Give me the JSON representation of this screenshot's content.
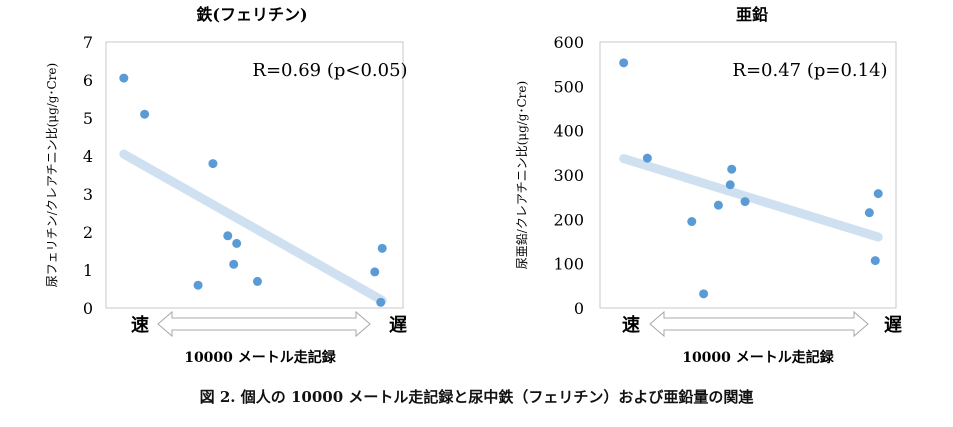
{
  "figure_caption": "図 2. 個人の 10000 メートル走記録と尿中鉄（フェリチン）および亜鉛量の関連",
  "chart_data": [
    {
      "type": "scatter",
      "title": "鉄(フェリチン)",
      "ylabel": "尿フェリチン/クレアチニン比(μg/g･Cre)",
      "xlabel": "10000 メートル走記録",
      "x_left_label": "速",
      "x_right_label": "遅",
      "ylim": [
        0,
        7
      ],
      "yticks": [
        0,
        1,
        2,
        3,
        4,
        5,
        6,
        7
      ],
      "xlim": [
        0,
        10
      ],
      "annotation": "R=0.69 (p<0.05)",
      "points": [
        {
          "x": 0.6,
          "y": 6.05
        },
        {
          "x": 1.3,
          "y": 5.1
        },
        {
          "x": 3.1,
          "y": 0.6
        },
        {
          "x": 3.6,
          "y": 3.8
        },
        {
          "x": 4.1,
          "y": 1.9
        },
        {
          "x": 4.4,
          "y": 1.7
        },
        {
          "x": 4.3,
          "y": 1.15
        },
        {
          "x": 5.1,
          "y": 0.7
        },
        {
          "x": 9.05,
          "y": 0.95
        },
        {
          "x": 9.3,
          "y": 1.57
        },
        {
          "x": 9.25,
          "y": 0.15
        }
      ],
      "trendline": {
        "x": [
          0.6,
          9.3
        ],
        "y": [
          4.05,
          0.2
        ]
      }
    },
    {
      "type": "scatter",
      "title": "亜鉛",
      "ylabel": "尿亜鉛/クレアチニン比(μg/g･Cre)",
      "xlabel": "10000 メートル走記録",
      "x_left_label": "速",
      "x_right_label": "遅",
      "ylim": [
        0,
        600
      ],
      "yticks": [
        0,
        100,
        200,
        300,
        400,
        500,
        600
      ],
      "xlim": [
        0,
        10
      ],
      "annotation": "R=0.47 (p=0.14)",
      "points": [
        {
          "x": 0.8,
          "y": 553
        },
        {
          "x": 1.6,
          "y": 338
        },
        {
          "x": 3.1,
          "y": 195
        },
        {
          "x": 3.5,
          "y": 32
        },
        {
          "x": 4.0,
          "y": 232
        },
        {
          "x": 4.4,
          "y": 278
        },
        {
          "x": 4.45,
          "y": 313
        },
        {
          "x": 4.9,
          "y": 240
        },
        {
          "x": 9.1,
          "y": 215
        },
        {
          "x": 9.3,
          "y": 107
        },
        {
          "x": 9.4,
          "y": 258
        }
      ],
      "trendline": {
        "x": [
          0.8,
          9.4
        ],
        "y": [
          337,
          160
        ]
      }
    }
  ]
}
